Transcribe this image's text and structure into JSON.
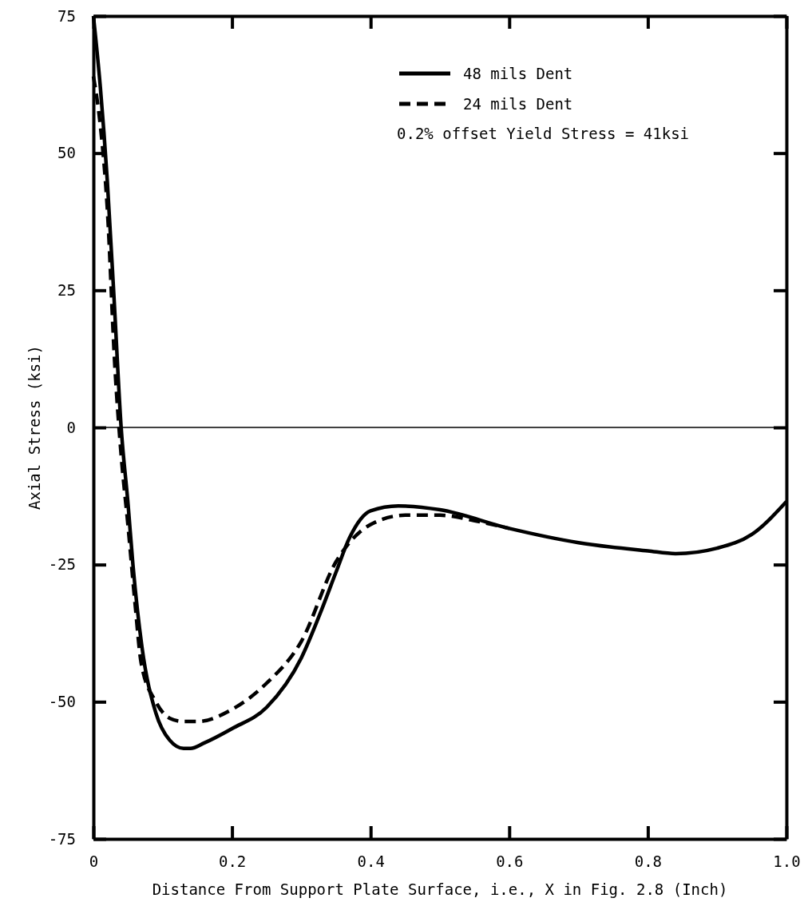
{
  "chart_data": {
    "type": "line",
    "xlabel": "Distance From Support Plate Surface, i.e., X in Fig. 2.8 (Inch)",
    "ylabel": "Axial Stress (ksi)",
    "xlim": [
      0,
      1
    ],
    "ylim": [
      -75,
      75
    ],
    "xticks": [
      0,
      0.2,
      0.4,
      0.6,
      0.8,
      {
        "value": 1,
        "label": "1.0"
      }
    ],
    "yticks": [
      -75,
      -50,
      -25,
      0,
      25,
      50,
      75
    ],
    "grid": false,
    "legend": "top right",
    "ref_lines": [
      {
        "axis": "y",
        "value": 0,
        "label": null
      }
    ],
    "annotations": [
      "0.2% offset Yield Stress = 41ksi"
    ],
    "series": [
      {
        "name": "48 mils Dent",
        "color": "#000000",
        "line_style": "solid",
        "x": [
          0,
          0.01,
          0.02,
          0.03,
          0.04,
          0.05,
          0.057,
          0.07,
          0.09,
          0.11,
          0.13,
          0.14,
          0.16,
          0.2,
          0.25,
          0.3,
          0.33,
          0.35,
          0.37,
          0.4,
          0.44,
          0.5,
          0.6,
          0.7,
          0.8,
          0.84,
          0.9,
          0.95,
          1.0
        ],
        "values": [
          75,
          62,
          45,
          23,
          0,
          -14,
          -25,
          -40,
          -52,
          -57,
          -58.5,
          -58.5,
          -57.5,
          -54.9,
          -51,
          -42,
          -33,
          -26.4,
          -20,
          -15.2,
          -14.3,
          -15,
          -18.4,
          -21,
          -22.5,
          -23,
          -22,
          -19.5,
          -13.5
        ]
      },
      {
        "name": "24 mils Dent",
        "color": "#000000",
        "line_style": "dashed",
        "x": [
          0,
          0.01,
          0.02,
          0.031,
          0.04,
          0.05,
          0.06,
          0.069,
          0.09,
          0.11,
          0.13,
          0.15,
          0.2,
          0.25,
          0.3,
          0.35,
          0.4,
          0.45,
          0.5,
          0.55,
          0.6
        ],
        "values": [
          64,
          55,
          40,
          11,
          -5,
          -18,
          -32,
          -43,
          -50,
          -53,
          -53.6,
          -53.6,
          -51.4,
          -46.6,
          -39,
          -24.5,
          -17.7,
          -16,
          -16,
          -17,
          -18.4
        ]
      }
    ]
  }
}
